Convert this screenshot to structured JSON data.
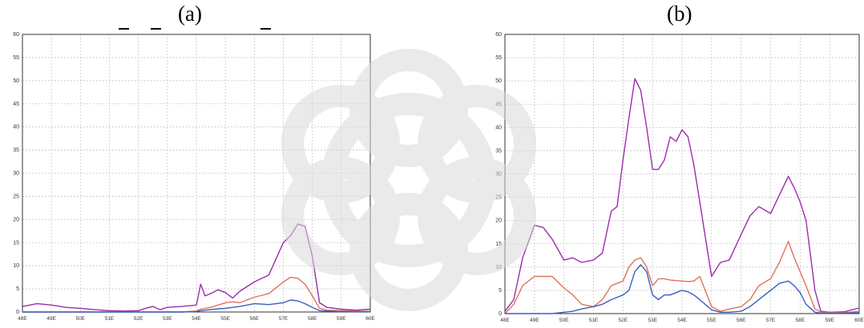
{
  "panels": [
    {
      "label": "(a)",
      "chart_data": {
        "type": "line",
        "title": "(a)",
        "xlabel": "",
        "ylabel": "",
        "x": [
          48,
          48.5,
          49,
          49.5,
          50,
          50.5,
          51,
          51.5,
          52,
          52.25,
          52.5,
          52.75,
          53,
          53.5,
          54,
          54.15,
          54.3,
          54.5,
          54.75,
          55,
          55.25,
          55.5,
          56,
          56.5,
          57,
          57.25,
          57.5,
          57.75,
          58,
          58.25,
          58.5,
          59,
          59.5,
          60
        ],
        "xticks": [
          "48E",
          "49E",
          "50E",
          "51E",
          "52E",
          "53E",
          "54E",
          "55E",
          "56E",
          "57E",
          "58E",
          "59E",
          "60E"
        ],
        "yticks": [
          "0",
          "5",
          "10",
          "15",
          "20",
          "25",
          "30",
          "35",
          "40",
          "45",
          "50",
          "55",
          "60"
        ],
        "ylim": [
          0,
          60
        ],
        "xlim": [
          48,
          60
        ],
        "grid": true,
        "series": [
          {
            "color": "#9a2fa8",
            "values": [
              1.2,
              1.8,
              1.5,
              1.0,
              0.8,
              0.5,
              0.3,
              0.2,
              0.3,
              0.8,
              1.2,
              0.5,
              1.0,
              1.2,
              1.5,
              6.0,
              3.5,
              4.0,
              4.8,
              4.2,
              3.0,
              4.5,
              6.5,
              8.0,
              15.0,
              16.5,
              19.0,
              18.5,
              12.0,
              2.0,
              1.0,
              0.6,
              0.4,
              0.6
            ]
          },
          {
            "color": "#e0735a",
            "values": [
              0,
              0,
              0,
              0,
              0,
              0,
              0,
              0,
              0,
              0,
              0,
              0,
              0,
              0,
              0.2,
              0.6,
              0.8,
              1.0,
              1.5,
              2.0,
              2.2,
              2.0,
              3.2,
              4.0,
              6.5,
              7.5,
              7.3,
              6.0,
              3.5,
              0.8,
              0.4,
              0.3,
              0.2,
              0.1
            ]
          },
          {
            "color": "#3a5fc0",
            "values": [
              0,
              0,
              0,
              0,
              0,
              0,
              0,
              0,
              0,
              0,
              0,
              0,
              0,
              0,
              0.1,
              0.3,
              0.4,
              0.5,
              0.7,
              0.8,
              1.0,
              1.2,
              1.8,
              1.6,
              2.0,
              2.6,
              2.4,
              1.8,
              1.0,
              0.3,
              0.2,
              0.1,
              0.1,
              0.1
            ]
          }
        ]
      }
    },
    {
      "label": "(b)",
      "chart_data": {
        "type": "line",
        "title": "(b)",
        "xlabel": "",
        "ylabel": "",
        "x": [
          48,
          48.3,
          48.6,
          49,
          49.3,
          49.6,
          50,
          50.3,
          50.6,
          51,
          51.3,
          51.6,
          51.8,
          52,
          52.2,
          52.4,
          52.6,
          52.8,
          53,
          53.2,
          53.4,
          53.6,
          53.8,
          54,
          54.2,
          54.4,
          54.6,
          55,
          55.3,
          55.6,
          56,
          56.3,
          56.6,
          57,
          57.3,
          57.6,
          57.8,
          58,
          58.2,
          58.5,
          58.7,
          59,
          59.5,
          60
        ],
        "xticks": [
          "48E",
          "49E",
          "50E",
          "51E",
          "52E",
          "53E",
          "54E",
          "55E",
          "56E",
          "57E",
          "58E",
          "59E",
          "60E"
        ],
        "yticks": [
          "0",
          "5",
          "10",
          "15",
          "20",
          "25",
          "30",
          "35",
          "40",
          "45",
          "50",
          "55",
          "60"
        ],
        "ylim": [
          0,
          60
        ],
        "xlim": [
          48,
          60
        ],
        "grid": true,
        "series": [
          {
            "color": "#9a2fa8",
            "values": [
              0.5,
              3,
              12,
              19,
              18.5,
              16,
              11.5,
              12,
              11,
              11.5,
              13,
              22,
              23,
              33,
              42,
              50.5,
              48,
              40,
              31,
              31,
              33,
              38,
              37,
              39.5,
              38,
              32,
              24,
              8,
              11,
              11.5,
              17,
              21,
              23,
              21.5,
              25.5,
              29.5,
              27,
              24,
              20,
              5,
              0.5,
              0.3,
              0.4,
              1.2
            ]
          },
          {
            "color": "#e0735a",
            "values": [
              0,
              2,
              6,
              8,
              8,
              8,
              5.5,
              4,
              2,
              1.5,
              3,
              6,
              6.5,
              7,
              10,
              11.5,
              12,
              10,
              6,
              7.5,
              7.5,
              7.2,
              7.1,
              7,
              6.9,
              7,
              8,
              1.5,
              0.5,
              1,
              1.5,
              3,
              6,
              7.5,
              11,
              15.5,
              12,
              9,
              6,
              1,
              0.3,
              0.2,
              0.2,
              0.5
            ]
          },
          {
            "color": "#3a5fc0",
            "values": [
              0,
              0,
              0,
              0,
              0,
              0,
              0.3,
              0.5,
              1,
              1.5,
              2,
              3,
              3.5,
              4,
              5,
              9,
              10.5,
              9,
              4,
              3,
              4,
              4,
              4.5,
              5,
              4.7,
              4,
              3,
              0.8,
              0.3,
              0.3,
              0.5,
              1.5,
              3,
              5,
              6.5,
              7,
              6,
              4.5,
              2,
              0.3,
              0.1,
              0.1,
              0.1,
              0.2
            ]
          }
        ]
      }
    }
  ],
  "colors": {
    "grid": "#c8c8c8",
    "axis": "#333333",
    "watermark": "#dadada"
  }
}
